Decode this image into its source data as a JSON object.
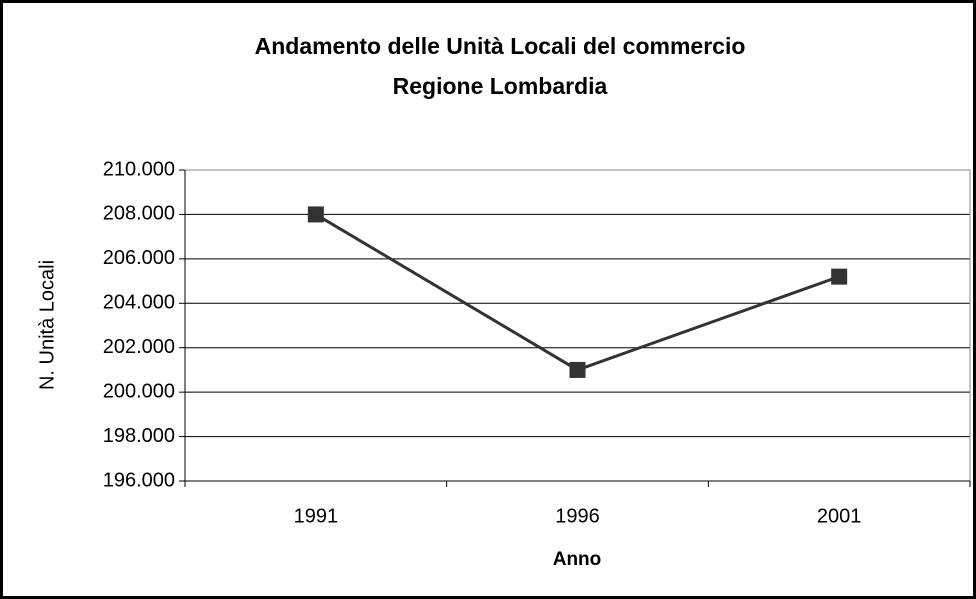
{
  "chart_data": {
    "type": "line",
    "title": "Andamento delle Unità Locali del commercio",
    "subtitle": "Regione Lombardia",
    "x_label": "Anno",
    "y_label": "N. Unità Locali",
    "categories": [
      "1991",
      "1996",
      "2001"
    ],
    "series": [
      {
        "name": "Unità Locali",
        "color": "#333333",
        "values": [
          208000,
          201000,
          205200
        ]
      }
    ],
    "ylim": [
      196000,
      210000
    ],
    "yticks": [
      {
        "value": 196000,
        "label": "196.000"
      },
      {
        "value": 198000,
        "label": "198.000"
      },
      {
        "value": 200000,
        "label": "200.000"
      },
      {
        "value": 202000,
        "label": "202.000"
      },
      {
        "value": 204000,
        "label": "204.000"
      },
      {
        "value": 206000,
        "label": "206.000"
      },
      {
        "value": 208000,
        "label": "208.000"
      },
      {
        "value": 210000,
        "label": "210.000"
      }
    ],
    "grid": true
  }
}
